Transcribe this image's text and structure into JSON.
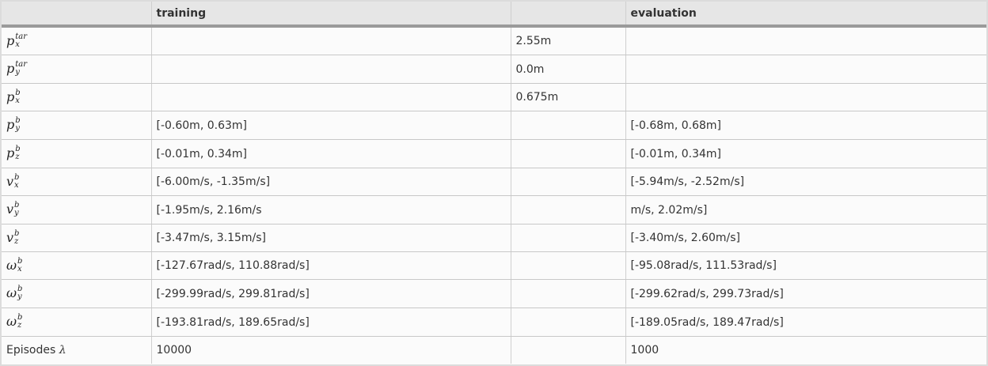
{
  "headers": [
    "",
    "training",
    "",
    "evaluation"
  ],
  "rows": [
    {
      "base": "p",
      "sup": "tar",
      "sub": "x",
      "training": "",
      "shared": "2.55m",
      "evaluation": ""
    },
    {
      "base": "p",
      "sup": "tar",
      "sub": "y",
      "training": "",
      "shared": "0.0m",
      "evaluation": ""
    },
    {
      "base": "p",
      "sup": "b",
      "sub": "x",
      "training": "",
      "shared": "0.675m",
      "evaluation": ""
    },
    {
      "base": "p",
      "sup": "b",
      "sub": "y",
      "training": "[-0.60m, 0.63m]",
      "shared": "",
      "evaluation": "[-0.68m, 0.68m]"
    },
    {
      "base": "p",
      "sup": "b",
      "sub": "z",
      "training": "[-0.01m, 0.34m]",
      "shared": "",
      "evaluation": "[-0.01m, 0.34m]"
    },
    {
      "base": "v",
      "sup": "b",
      "sub": "x",
      "training": "[-6.00m/s, -1.35m/s]",
      "shared": "",
      "evaluation": "[-5.94m/s, -2.52m/s]"
    },
    {
      "base": "v",
      "sup": "b",
      "sub": "y",
      "training": "[-1.95m/s, 2.16m/s",
      "shared": "",
      "evaluation": "m/s, 2.02m/s]"
    },
    {
      "base": "v",
      "sup": "b",
      "sub": "z",
      "training": "[-3.47m/s, 3.15m/s]",
      "shared": "",
      "evaluation": "[-3.40m/s, 2.60m/s]"
    },
    {
      "base": "ω",
      "sup": "b",
      "sub": "x",
      "training": "[-127.67rad/s, 110.88rad/s]",
      "shared": "",
      "evaluation": "[-95.08rad/s, 111.53rad/s]"
    },
    {
      "base": "ω",
      "sup": "b",
      "sub": "y",
      "training": "[-299.99rad/s, 299.81rad/s]",
      "shared": "",
      "evaluation": "[-299.62rad/s, 299.73rad/s]"
    },
    {
      "base": "ω",
      "sup": "b",
      "sub": "z",
      "training": "[-193.81rad/s, 189.65rad/s]",
      "shared": "",
      "evaluation": "[-189.05rad/s, 189.47rad/s]"
    }
  ],
  "episodes": {
    "label": "Episodes",
    "symbol": "λ",
    "training": "10000",
    "evaluation": "1000"
  }
}
